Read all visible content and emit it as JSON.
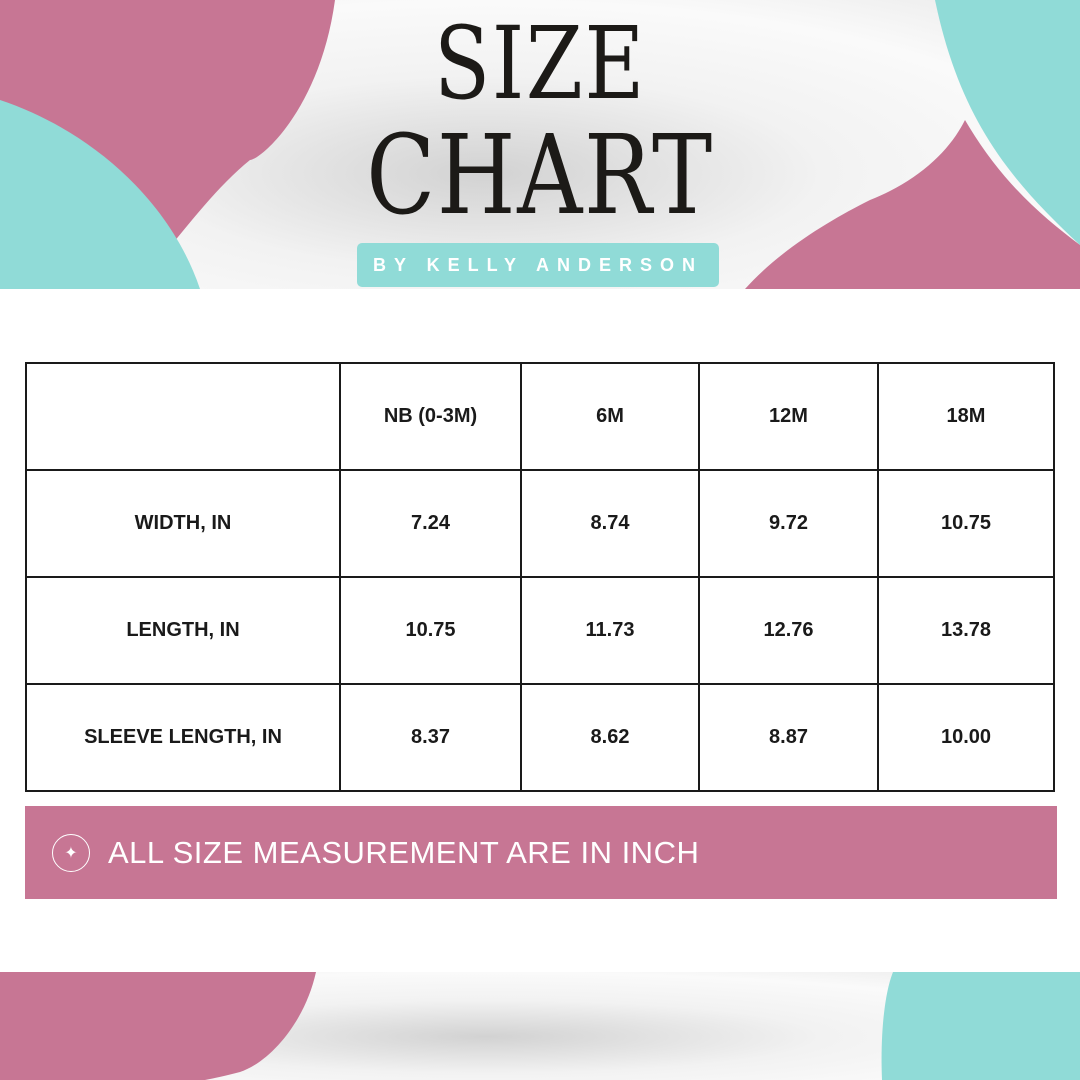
{
  "header": {
    "title_line1": "SIZE",
    "title_line2": "CHART",
    "byline": "BY KELLY ANDERSON"
  },
  "colors": {
    "pink": "#c77694",
    "teal": "#90dbd7"
  },
  "table": {
    "columns": [
      "",
      "NB (0-3M)",
      "6M",
      "12M",
      "18M"
    ],
    "rows": [
      {
        "label": "WIDTH, IN",
        "values": [
          "7.24",
          "8.74",
          "9.72",
          "10.75"
        ]
      },
      {
        "label": "LENGTH, IN",
        "values": [
          "10.75",
          "11.73",
          "12.76",
          "13.78"
        ]
      },
      {
        "label": "SLEEVE LENGTH, IN",
        "values": [
          "8.37",
          "8.62",
          "8.87",
          "10.00"
        ]
      }
    ]
  },
  "note": {
    "icon": "sparkle-icon",
    "text": "ALL SIZE MEASUREMENT ARE IN INCH"
  }
}
